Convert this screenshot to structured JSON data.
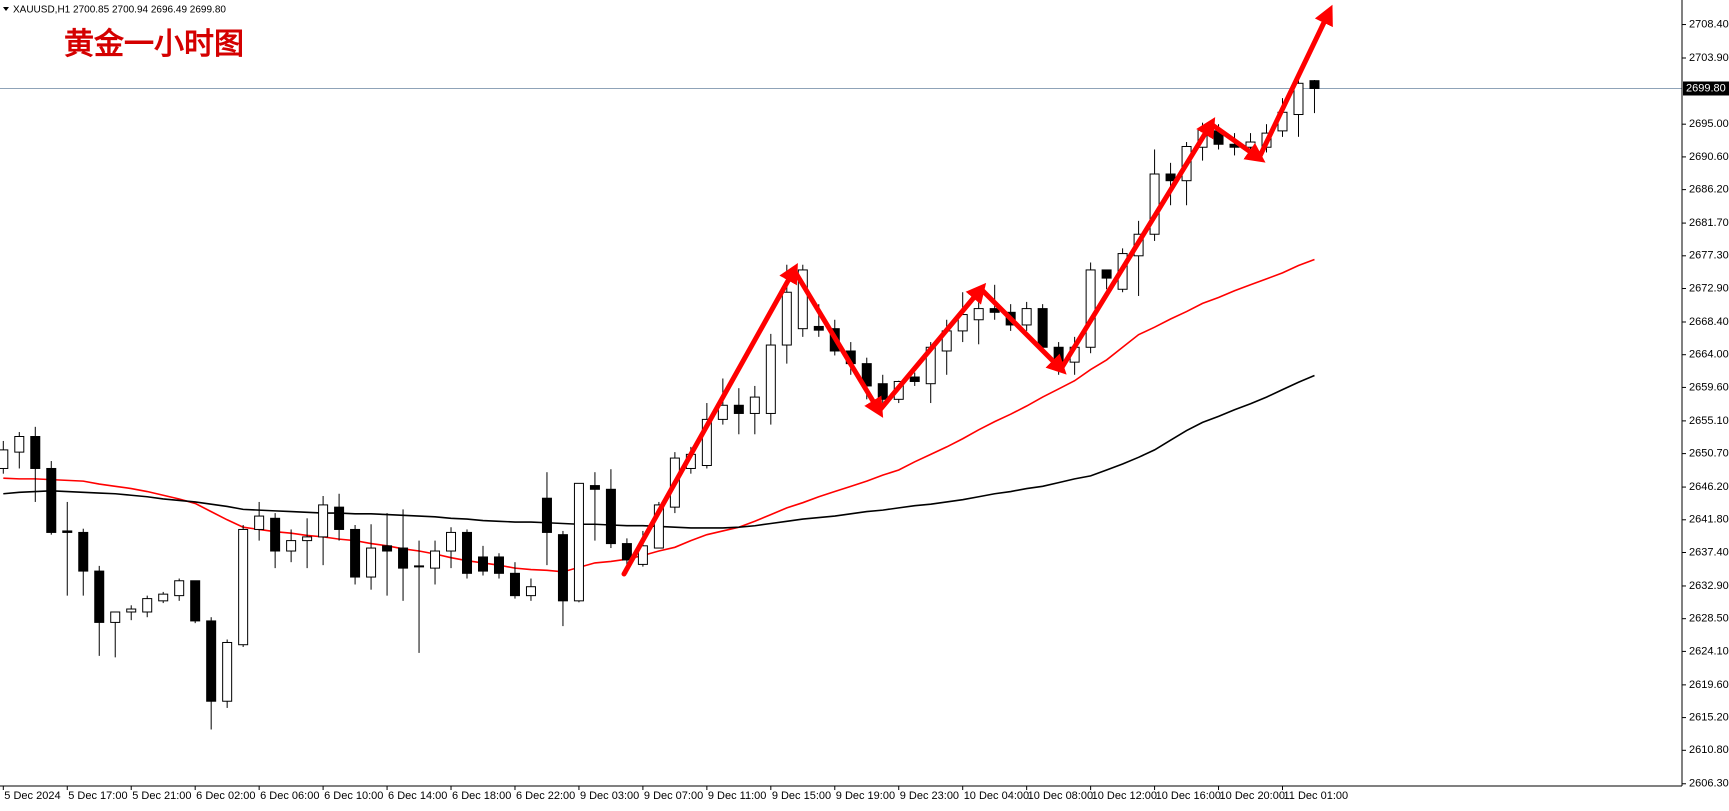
{
  "chart_data": {
    "type": "candlestick",
    "header": "XAUUSD,H1 2700.85 2700.94 2696.49 2699.80",
    "title": "黄金一小时图",
    "categories": [
      "5 Dec 2024",
      null,
      null,
      null,
      "5 Dec 17:00",
      null,
      null,
      null,
      "5 Dec 21:00",
      null,
      null,
      null,
      "6 Dec 02:00",
      null,
      null,
      null,
      "6 Dec 06:00",
      null,
      null,
      null,
      "6 Dec 10:00",
      null,
      null,
      null,
      "6 Dec 14:00",
      null,
      null,
      null,
      "6 Dec 18:00",
      null,
      null,
      null,
      "6 Dec 22:00",
      null,
      null,
      null,
      "9 Dec 03:00",
      null,
      null,
      null,
      "9 Dec 07:00",
      null,
      null,
      null,
      "9 Dec 11:00",
      null,
      null,
      null,
      "9 Dec 15:00",
      null,
      null,
      null,
      "9 Dec 19:00",
      null,
      null,
      null,
      "9 Dec 23:00",
      null,
      null,
      null,
      "10 Dec 04:00",
      null,
      null,
      null,
      "10 Dec 08:00",
      null,
      null,
      null,
      "10 Dec 12:00",
      null,
      null,
      null,
      "10 Dec 16:00",
      null,
      null,
      null,
      "10 Dec 20:00",
      null,
      null,
      null,
      "11 Dec 01:00",
      null,
      null
    ],
    "open": [
      2648.7,
      2650.9,
      2653.0,
      2648.7,
      2640.3,
      2640.1,
      2634.9,
      2628.0,
      2629.4,
      2629.4,
      2630.9,
      2631.6,
      2633.6,
      2628.2,
      2617.4,
      2625.0,
      2640.5,
      2642.0,
      2637.6,
      2639.0,
      2639.5,
      2643.5,
      2640.5,
      2634.1,
      2638.3,
      2638.0,
      2635.6,
      2635.3,
      2637.6,
      2640.1,
      2636.8,
      2636.8,
      2634.6,
      2631.6,
      2644.7,
      2639.8,
      2630.9,
      2646.4,
      2645.9,
      2638.6,
      2635.8,
      2638.0,
      2643.5,
      2648.7,
      2649.1,
      2655.3,
      2657.2,
      2656.1,
      2656.1,
      2665.3,
      2667.5,
      2667.8,
      2667.5,
      2664.5,
      2662.8,
      2660.1,
      2658.0,
      2661.0,
      2660.1,
      2664.5,
      2667.2,
      2668.7,
      2670.2,
      2669.7,
      2668.0,
      2670.2,
      2665.0,
      2663.0,
      2665.0,
      2675.4,
      2672.8,
      2677.3,
      2680.2,
      2688.3,
      2687.4,
      2691.9,
      2694.1,
      2692.3,
      2691.9,
      2691.9,
      2694.1,
      2696.3,
      2700.85
    ],
    "high": [
      2652.4,
      2653.6,
      2654.3,
      2649.7,
      2644.2,
      2640.6,
      2635.6,
      2629.4,
      2630.3,
      2631.6,
      2632.1,
      2633.9,
      2633.6,
      2628.7,
      2625.7,
      2641.1,
      2644.2,
      2642.7,
      2640.5,
      2642.0,
      2645.0,
      2645.3,
      2641.1,
      2641.2,
      2642.7,
      2643.2,
      2639.0,
      2639.0,
      2640.8,
      2640.5,
      2638.3,
      2637.3,
      2636.1,
      2633.9,
      2648.2,
      2640.3,
      2646.7,
      2648.2,
      2648.6,
      2639.3,
      2640.3,
      2644.2,
      2650.9,
      2651.6,
      2657.5,
      2660.8,
      2659.5,
      2659.8,
      2666.8,
      2676.1,
      2676.1,
      2670.8,
      2668.7,
      2665.7,
      2663.6,
      2661.3,
      2660.5,
      2661.6,
      2665.7,
      2668.7,
      2672.4,
      2672.8,
      2673.4,
      2670.8,
      2671.1,
      2670.8,
      2665.7,
      2666.4,
      2676.4,
      2675.4,
      2678.3,
      2682.0,
      2691.6,
      2689.8,
      2692.6,
      2695.2,
      2695.0,
      2693.8,
      2693.8,
      2695.0,
      2698.5,
      2700.9,
      2700.94
    ],
    "low": [
      2648.0,
      2648.7,
      2644.2,
      2639.8,
      2631.6,
      2631.6,
      2623.5,
      2623.3,
      2628.3,
      2628.7,
      2630.6,
      2630.9,
      2627.9,
      2613.6,
      2616.5,
      2624.7,
      2639.0,
      2635.3,
      2636.1,
      2635.3,
      2635.7,
      2639.0,
      2633.1,
      2632.4,
      2631.6,
      2630.9,
      2623.9,
      2633.1,
      2635.3,
      2633.9,
      2634.3,
      2633.9,
      2631.2,
      2630.9,
      2635.7,
      2627.5,
      2630.7,
      2639.0,
      2638.0,
      2634.6,
      2635.5,
      2638.0,
      2642.7,
      2648.0,
      2648.7,
      2654.6,
      2653.3,
      2653.3,
      2654.6,
      2662.8,
      2666.4,
      2666.4,
      2663.9,
      2661.3,
      2658.0,
      2656.8,
      2657.5,
      2659.8,
      2657.5,
      2661.3,
      2665.7,
      2665.4,
      2668.7,
      2667.2,
      2667.2,
      2664.2,
      2661.3,
      2661.3,
      2664.2,
      2672.8,
      2672.4,
      2671.9,
      2679.3,
      2684.1,
      2684.1,
      2690.1,
      2691.6,
      2690.8,
      2690.8,
      2691.2,
      2693.3,
      2693.3,
      2696.49
    ],
    "close": [
      2651.2,
      2653.0,
      2648.7,
      2640.1,
      2640.1,
      2634.9,
      2628.0,
      2629.4,
      2629.8,
      2631.2,
      2631.8,
      2633.6,
      2628.2,
      2617.4,
      2625.3,
      2640.5,
      2642.3,
      2637.6,
      2639.0,
      2639.5,
      2643.8,
      2640.5,
      2634.1,
      2638.0,
      2637.6,
      2635.3,
      2635.5,
      2637.6,
      2640.1,
      2634.6,
      2634.9,
      2634.6,
      2631.6,
      2632.8,
      2640.1,
      2630.9,
      2646.7,
      2645.9,
      2638.6,
      2636.4,
      2638.3,
      2643.8,
      2650.1,
      2650.6,
      2655.3,
      2657.2,
      2656.1,
      2658.3,
      2665.3,
      2672.4,
      2675.4,
      2667.3,
      2664.5,
      2662.8,
      2659.8,
      2658.0,
      2660.4,
      2660.4,
      2665.0,
      2667.2,
      2669.4,
      2670.2,
      2669.7,
      2668.0,
      2670.2,
      2665.0,
      2663.0,
      2665.0,
      2675.4,
      2674.3,
      2677.6,
      2680.2,
      2688.3,
      2687.4,
      2692.0,
      2694.2,
      2692.3,
      2691.9,
      2692.6,
      2693.8,
      2696.6,
      2700.5,
      2699.8
    ],
    "lines": [
      {
        "color": "#ff0000",
        "values": [
          2647.4,
          2647.3,
          2647.3,
          2647.2,
          2647.1,
          2647.0,
          2646.6,
          2646.3,
          2646.0,
          2645.6,
          2645.1,
          2644.6,
          2644.0,
          2642.9,
          2641.8,
          2640.8,
          2640.5,
          2640.2,
          2640.0,
          2639.7,
          2639.5,
          2639.2,
          2639.0,
          2638.6,
          2638.3,
          2637.9,
          2637.6,
          2637.2,
          2636.7,
          2636.3,
          2636.0,
          2635.7,
          2635.3,
          2635.1,
          2635.0,
          2634.8,
          2635.4,
          2636.0,
          2636.2,
          2636.5,
          2637.0,
          2637.6,
          2638.1,
          2639.0,
          2639.8,
          2640.3,
          2640.8,
          2641.6,
          2642.5,
          2643.4,
          2644.1,
          2644.9,
          2645.6,
          2646.3,
          2647.0,
          2647.8,
          2648.5,
          2649.6,
          2650.6,
          2651.6,
          2652.7,
          2653.9,
          2655.0,
          2656.0,
          2657.1,
          2658.3,
          2659.4,
          2660.5,
          2662.0,
          2663.3,
          2665.0,
          2666.7,
          2667.7,
          2668.8,
          2669.8,
          2670.9,
          2671.7,
          2672.6,
          2673.4,
          2674.2,
          2675.0,
          2676.0,
          2676.8
        ]
      },
      {
        "color": "#000000",
        "values": [
          2645.3,
          2645.5,
          2645.6,
          2645.7,
          2645.6,
          2645.5,
          2645.4,
          2645.3,
          2645.1,
          2644.9,
          2644.6,
          2644.4,
          2644.2,
          2643.9,
          2643.6,
          2643.2,
          2643.1,
          2643.0,
          2642.9,
          2642.8,
          2642.7,
          2642.7,
          2642.6,
          2642.6,
          2642.5,
          2642.4,
          2642.3,
          2642.2,
          2642.0,
          2641.9,
          2641.7,
          2641.6,
          2641.5,
          2641.5,
          2641.4,
          2641.3,
          2641.2,
          2641.2,
          2641.1,
          2641.0,
          2641.0,
          2640.9,
          2640.8,
          2640.7,
          2640.7,
          2640.7,
          2640.8,
          2641.0,
          2641.3,
          2641.6,
          2641.9,
          2642.1,
          2642.3,
          2642.6,
          2642.9,
          2643.1,
          2643.4,
          2643.7,
          2643.9,
          2644.2,
          2644.5,
          2644.9,
          2645.3,
          2645.6,
          2646.0,
          2646.3,
          2646.8,
          2647.3,
          2647.7,
          2648.5,
          2649.3,
          2650.2,
          2651.2,
          2652.5,
          2653.8,
          2654.9,
          2655.7,
          2656.6,
          2657.4,
          2658.3,
          2659.3,
          2660.3,
          2661.2
        ]
      }
    ],
    "current_price": {
      "value": 2699.8,
      "label": "2699.80"
    },
    "ylim": [
      2606.0,
      2711.7
    ],
    "yticks": [
      {
        "value": 2606.3,
        "label": "2606.30"
      },
      {
        "value": 2610.8,
        "label": "2610.80"
      },
      {
        "value": 2615.2,
        "label": "2615.20"
      },
      {
        "value": 2619.6,
        "label": "2619.60"
      },
      {
        "value": 2624.1,
        "label": "2624.10"
      },
      {
        "value": 2628.5,
        "label": "2628.50"
      },
      {
        "value": 2632.9,
        "label": "2632.90"
      },
      {
        "value": 2637.4,
        "label": "2637.40"
      },
      {
        "value": 2641.8,
        "label": "2641.80"
      },
      {
        "value": 2646.2,
        "label": "2646.20"
      },
      {
        "value": 2650.7,
        "label": "2650.70"
      },
      {
        "value": 2655.1,
        "label": "2655.10"
      },
      {
        "value": 2659.6,
        "label": "2659.60"
      },
      {
        "value": 2664,
        "label": "2664.00"
      },
      {
        "value": 2668.4,
        "label": "2668.40"
      },
      {
        "value": 2672.9,
        "label": "2672.90"
      },
      {
        "value": 2677.3,
        "label": "2677.30"
      },
      {
        "value": 2681.7,
        "label": "2681.70"
      },
      {
        "value": 2686.2,
        "label": "2686.20"
      },
      {
        "value": 2690.6,
        "label": "2690.60"
      },
      {
        "value": 2695,
        "label": "2695.00"
      },
      {
        "value": 2703.9,
        "label": "2703.90"
      },
      {
        "value": 2708.4,
        "label": "2708.40"
      }
    ],
    "bull_color": "#ffffff",
    "bear_color": "#000000"
  }
}
